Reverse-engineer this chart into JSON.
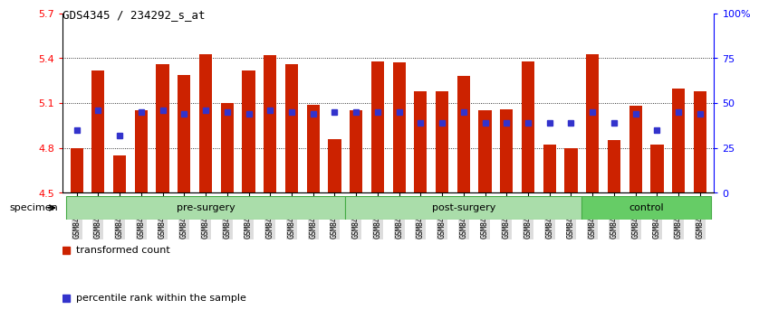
{
  "title": "GDS4345 / 234292_s_at",
  "ylim": [
    4.5,
    5.7
  ],
  "yticks": [
    4.5,
    4.8,
    5.1,
    5.4,
    5.7
  ],
  "y_right_ticks": [
    0,
    25,
    50,
    75,
    100
  ],
  "y_right_tick_labels": [
    "0",
    "25",
    "50",
    "75",
    "100%"
  ],
  "bar_color": "#cc2200",
  "dot_color": "#3333cc",
  "bar_baseline": 4.5,
  "samples": [
    "GSM842012",
    "GSM842013",
    "GSM842014",
    "GSM842015",
    "GSM842016",
    "GSM842017",
    "GSM842018",
    "GSM842019",
    "GSM842020",
    "GSM842021",
    "GSM842022",
    "GSM842023",
    "GSM842024",
    "GSM842025",
    "GSM842026",
    "GSM842027",
    "GSM842028",
    "GSM842029",
    "GSM842030",
    "GSM842031",
    "GSM842032",
    "GSM842033",
    "GSM842034",
    "GSM842035",
    "GSM842036",
    "GSM842037",
    "GSM842038",
    "GSM842039",
    "GSM842040",
    "GSM842041"
  ],
  "bar_values": [
    4.8,
    5.32,
    4.75,
    5.05,
    5.36,
    5.29,
    5.43,
    5.1,
    5.32,
    5.42,
    5.36,
    5.09,
    4.86,
    5.05,
    5.38,
    5.37,
    5.18,
    5.18,
    5.28,
    5.05,
    5.06,
    5.38,
    4.82,
    4.8,
    5.43,
    4.85,
    5.08,
    4.82,
    5.2,
    5.18
  ],
  "dot_values": [
    4.92,
    5.05,
    4.88,
    5.04,
    5.05,
    5.03,
    5.05,
    5.04,
    5.03,
    5.05,
    5.04,
    5.03,
    5.04,
    5.04,
    5.04,
    5.04,
    4.97,
    4.97,
    5.04,
    4.97,
    4.97,
    4.97,
    4.97,
    4.97,
    5.04,
    4.97,
    5.03,
    4.92,
    5.04,
    5.03
  ],
  "groups": [
    {
      "label": "pre-surgery",
      "start": 0,
      "end": 13
    },
    {
      "label": "post-surgery",
      "start": 13,
      "end": 24
    },
    {
      "label": "control",
      "start": 24,
      "end": 30
    }
  ],
  "group_colors": [
    "#aaddaa",
    "#aaddaa",
    "#66cc66"
  ],
  "group_edge_color": "#44aa44",
  "specimen_label": "specimen",
  "legend_items": [
    {
      "color": "#cc2200",
      "label": "transformed count"
    },
    {
      "color": "#3333cc",
      "label": "percentile rank within the sample"
    }
  ]
}
